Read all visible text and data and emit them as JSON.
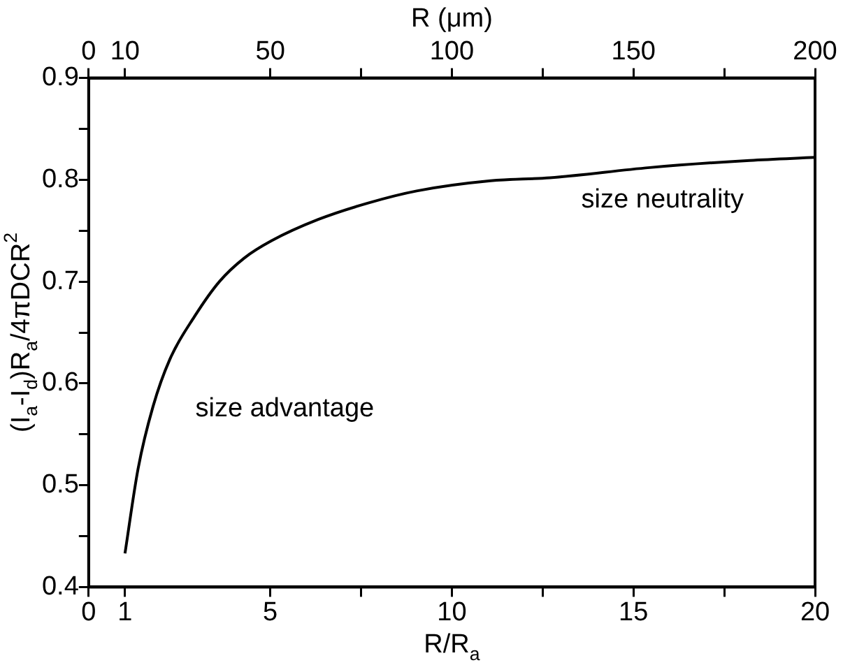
{
  "chart_data": {
    "type": "line",
    "xlabel": "R/R$_{a}$",
    "ylabel": "(I$_{a}$-I$_{d}$)R$_{a}$/4πDCR$^{2}$",
    "x2label": "R (μm)",
    "series": [
      {
        "color": "#000000",
        "x": [
          1,
          1.36,
          1.77,
          2.24,
          2.92,
          3.6,
          4.28,
          5.03,
          6.32,
          7.68,
          9.03,
          11.07,
          12.7,
          15.45,
          18.2,
          20
        ],
        "values": [
          0.433,
          0.516,
          0.577,
          0.624,
          0.666,
          0.7,
          0.723,
          0.74,
          0.761,
          0.777,
          0.789,
          0.799,
          0.802,
          0.812,
          0.819,
          0.822
        ]
      }
    ],
    "xlim": [
      0,
      20
    ],
    "xticks": [
      0,
      1,
      5,
      {
        "value": 7.5,
        "label": null
      },
      10,
      {
        "value": 12.5,
        "label": null
      },
      15,
      {
        "value": 17.5,
        "label": null
      },
      20
    ],
    "x2lim": [
      0,
      200
    ],
    "x2ticks": [
      0,
      10,
      50,
      {
        "value": 75,
        "label": null
      },
      100,
      {
        "value": 125,
        "label": null
      },
      150,
      {
        "value": 175,
        "label": null
      },
      200
    ],
    "ylim": [
      0.4,
      0.9
    ],
    "yticks": [
      0.4,
      {
        "value": 0.45,
        "label": null
      },
      0.5,
      {
        "value": 0.55,
        "label": null
      },
      0.6,
      {
        "value": 0.65,
        "label": null
      },
      0.7,
      {
        "value": 0.75,
        "label": null
      },
      0.8,
      {
        "value": 0.85,
        "label": null
      },
      0.9
    ],
    "annotations": [
      "size advantage",
      "size neutrality"
    ],
    "grid": false,
    "legend": false,
    "marker": "none",
    "line_style": "solid"
  }
}
